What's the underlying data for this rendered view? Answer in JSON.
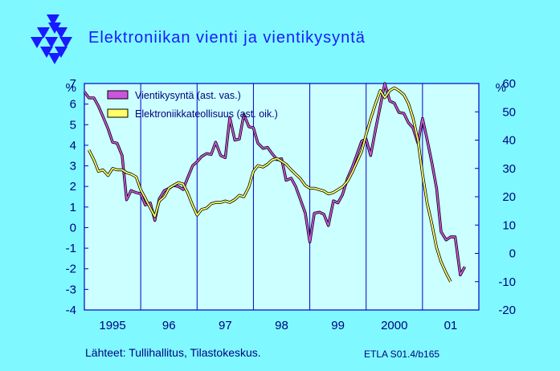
{
  "title": "Elektroniikan vienti ja vientikysyntä",
  "footer": {
    "sources": "Lähteet:  Tullihallitus, Tilastokeskus.",
    "code": "ETLA S01.4/b165"
  },
  "colors": {
    "background": "#7ff9ff",
    "plot_area": "#ccffff",
    "frame": "#0000cc",
    "text": "#000080",
    "logo": "#1a1aff"
  },
  "chart_data": {
    "type": "line",
    "title": "Elektroniikan vienti ja vientikysyntä",
    "left_axis": {
      "unit": "%",
      "ylim": [
        -4,
        7
      ],
      "ticks": [
        "7",
        "6",
        "5",
        "4",
        "3",
        "2",
        "1",
        "0",
        "-1",
        "-2",
        "-3",
        "-4"
      ]
    },
    "right_axis": {
      "unit": "%",
      "ylim": [
        -20,
        60
      ],
      "ticks": [
        "60",
        "50",
        "40",
        "30",
        "20",
        "10",
        "0",
        "-10",
        "-20"
      ]
    },
    "x_axis": {
      "xlim": [
        1994.5,
        2001.5
      ],
      "year_labels": [
        "1995",
        "96",
        "97",
        "98",
        "99",
        "2000",
        "01"
      ]
    },
    "vertical_gridlines": [
      1995.5,
      1996.5,
      1997.5,
      1998.5,
      1999.5,
      2000.5
    ],
    "grid": "vertical only",
    "legend_position": "top-left",
    "series": [
      {
        "name": "Vientikysyntä (ast. vas.)",
        "axis": "left",
        "color": "#cc55dd",
        "points": [
          [
            1994.5,
            6.6
          ],
          [
            1994.58,
            6.3
          ],
          [
            1994.67,
            6.3
          ],
          [
            1994.75,
            5.9
          ],
          [
            1994.83,
            5.4
          ],
          [
            1994.92,
            4.8
          ],
          [
            1995.0,
            4.15
          ],
          [
            1995.08,
            4.1
          ],
          [
            1995.17,
            3.5
          ],
          [
            1995.25,
            1.35
          ],
          [
            1995.33,
            1.8
          ],
          [
            1995.42,
            1.7
          ],
          [
            1995.5,
            1.65
          ],
          [
            1995.58,
            1.1
          ],
          [
            1995.67,
            1.2
          ],
          [
            1995.75,
            0.35
          ],
          [
            1995.83,
            1.4
          ],
          [
            1995.92,
            1.8
          ],
          [
            1996.0,
            1.9
          ],
          [
            1996.08,
            2.05
          ],
          [
            1996.17,
            2.0
          ],
          [
            1996.25,
            1.85
          ],
          [
            1996.33,
            2.4
          ],
          [
            1996.42,
            3.0
          ],
          [
            1996.5,
            3.2
          ],
          [
            1996.58,
            3.45
          ],
          [
            1996.67,
            3.6
          ],
          [
            1996.75,
            3.55
          ],
          [
            1996.83,
            4.15
          ],
          [
            1996.92,
            3.5
          ],
          [
            1997.0,
            3.4
          ],
          [
            1997.08,
            5.35
          ],
          [
            1997.17,
            4.25
          ],
          [
            1997.25,
            4.3
          ],
          [
            1997.33,
            5.5
          ],
          [
            1997.42,
            4.9
          ],
          [
            1997.5,
            4.85
          ],
          [
            1997.58,
            4.1
          ],
          [
            1997.67,
            3.85
          ],
          [
            1997.75,
            3.9
          ],
          [
            1997.83,
            3.6
          ],
          [
            1997.92,
            3.3
          ],
          [
            1998.0,
            3.35
          ],
          [
            1998.08,
            2.3
          ],
          [
            1998.17,
            2.4
          ],
          [
            1998.25,
            2.0
          ],
          [
            1998.33,
            1.4
          ],
          [
            1998.42,
            0.7
          ],
          [
            1998.5,
            -0.7
          ],
          [
            1998.58,
            0.7
          ],
          [
            1998.67,
            0.75
          ],
          [
            1998.75,
            0.65
          ],
          [
            1998.83,
            0.1
          ],
          [
            1998.92,
            1.3
          ],
          [
            1999.0,
            1.2
          ],
          [
            1999.08,
            1.6
          ],
          [
            1999.17,
            2.4
          ],
          [
            1999.25,
            2.9
          ],
          [
            1999.33,
            3.5
          ],
          [
            1999.42,
            4.2
          ],
          [
            1999.5,
            4.3
          ],
          [
            1999.58,
            3.5
          ],
          [
            1999.67,
            4.8
          ],
          [
            1999.75,
            5.9
          ],
          [
            1999.83,
            7.0
          ],
          [
            1999.92,
            6.15
          ],
          [
            2000.0,
            6.05
          ],
          [
            2000.08,
            5.6
          ],
          [
            2000.17,
            5.55
          ],
          [
            2000.25,
            5.1
          ],
          [
            2000.33,
            4.85
          ],
          [
            2000.42,
            4.1
          ],
          [
            2000.5,
            5.3
          ],
          [
            2000.58,
            4.3
          ],
          [
            2000.67,
            3.1
          ],
          [
            2000.75,
            1.9
          ],
          [
            2000.83,
            -0.2
          ],
          [
            2000.92,
            -0.6
          ],
          [
            2001.0,
            -0.45
          ],
          [
            2001.08,
            -0.45
          ],
          [
            2001.17,
            -2.3
          ],
          [
            2001.25,
            -1.9
          ]
        ]
      },
      {
        "name": "Elektroniikkateollisuus (ast. oik.)",
        "axis": "right",
        "color": "#ffff66",
        "points": [
          [
            1994.58,
            36.5
          ],
          [
            1994.67,
            33.0
          ],
          [
            1994.75,
            29.0
          ],
          [
            1994.83,
            29.5
          ],
          [
            1994.92,
            27.5
          ],
          [
            1995.0,
            30.0
          ],
          [
            1995.08,
            29.5
          ],
          [
            1995.17,
            29.5
          ],
          [
            1995.25,
            28.5
          ],
          [
            1995.33,
            28.0
          ],
          [
            1995.42,
            27.0
          ],
          [
            1995.5,
            22.5
          ],
          [
            1995.58,
            19.5
          ],
          [
            1995.67,
            16.0
          ],
          [
            1995.75,
            13.0
          ],
          [
            1995.83,
            18.5
          ],
          [
            1995.92,
            20.0
          ],
          [
            1996.0,
            23.0
          ],
          [
            1996.08,
            24.0
          ],
          [
            1996.17,
            25.0
          ],
          [
            1996.25,
            24.5
          ],
          [
            1996.33,
            21.5
          ],
          [
            1996.42,
            17.0
          ],
          [
            1996.5,
            13.5
          ],
          [
            1996.58,
            15.5
          ],
          [
            1996.67,
            16.0
          ],
          [
            1996.75,
            17.5
          ],
          [
            1996.83,
            18.0
          ],
          [
            1996.92,
            18.0
          ],
          [
            1997.0,
            18.5
          ],
          [
            1997.08,
            18.0
          ],
          [
            1997.17,
            19.0
          ],
          [
            1997.25,
            20.5
          ],
          [
            1997.33,
            20.0
          ],
          [
            1997.42,
            23.5
          ],
          [
            1997.5,
            29.0
          ],
          [
            1997.58,
            31.0
          ],
          [
            1997.67,
            30.5
          ],
          [
            1997.75,
            31.5
          ],
          [
            1997.83,
            33.0
          ],
          [
            1997.92,
            33.5
          ],
          [
            1998.0,
            32.5
          ],
          [
            1998.08,
            31.5
          ],
          [
            1998.17,
            29.5
          ],
          [
            1998.25,
            28.0
          ],
          [
            1998.33,
            26.5
          ],
          [
            1998.42,
            24.0
          ],
          [
            1998.5,
            23.0
          ],
          [
            1998.58,
            23.0
          ],
          [
            1998.67,
            22.5
          ],
          [
            1998.75,
            22.0
          ],
          [
            1998.83,
            21.0
          ],
          [
            1998.92,
            21.5
          ],
          [
            1999.0,
            22.5
          ],
          [
            1999.08,
            23.5
          ],
          [
            1999.17,
            25.5
          ],
          [
            1999.25,
            28.5
          ],
          [
            1999.33,
            32.0
          ],
          [
            1999.42,
            36.0
          ],
          [
            1999.5,
            42.0
          ],
          [
            1999.58,
            47.5
          ],
          [
            1999.67,
            53.0
          ],
          [
            1999.75,
            57.5
          ],
          [
            1999.83,
            55.0
          ],
          [
            1999.92,
            57.5
          ],
          [
            2000.0,
            58.5
          ],
          [
            2000.08,
            57.5
          ],
          [
            2000.17,
            56.0
          ],
          [
            2000.25,
            53.0
          ],
          [
            2000.33,
            48.0
          ],
          [
            2000.42,
            40.0
          ],
          [
            2000.5,
            28.0
          ],
          [
            2000.58,
            18.0
          ],
          [
            2000.67,
            10.0
          ],
          [
            2000.75,
            2.0
          ],
          [
            2000.83,
            -3.0
          ],
          [
            2000.92,
            -7.0
          ],
          [
            2001.0,
            -10.0
          ]
        ]
      }
    ]
  }
}
